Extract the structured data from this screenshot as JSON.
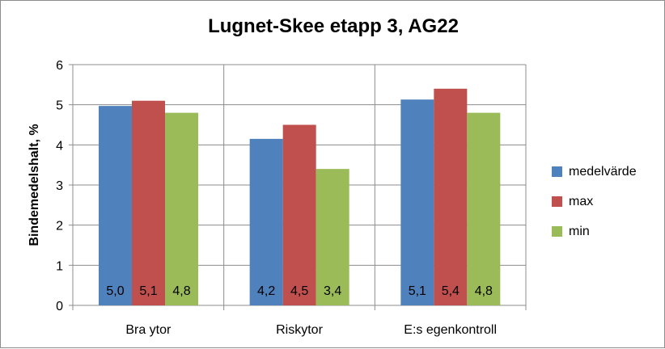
{
  "chart_data": {
    "type": "bar",
    "title": "Lugnet-Skee etapp 3, AG22",
    "xlabel": "",
    "ylabel": "Bindemedelshalt, %",
    "ylim": [
      0,
      6
    ],
    "yticks": [
      "0",
      "1",
      "2",
      "3",
      "4",
      "5",
      "6"
    ],
    "grid": true,
    "legend_position": "right",
    "categories": [
      "Bra ytor",
      "Riskytor",
      "E:s egenkontroll"
    ],
    "series": [
      {
        "name": "medelvärde",
        "color": "#4f81bd",
        "values": [
          4.97,
          4.15,
          5.13
        ],
        "labels": [
          "5,0",
          "4,2",
          "5,1"
        ]
      },
      {
        "name": "max",
        "color": "#c0504d",
        "values": [
          5.1,
          4.5,
          5.4
        ],
        "labels": [
          "5,1",
          "4,5",
          "5,4"
        ]
      },
      {
        "name": "min",
        "color": "#9bbb59",
        "values": [
          4.8,
          3.4,
          4.8
        ],
        "labels": [
          "4,8",
          "3,4",
          "4,8"
        ]
      }
    ]
  }
}
